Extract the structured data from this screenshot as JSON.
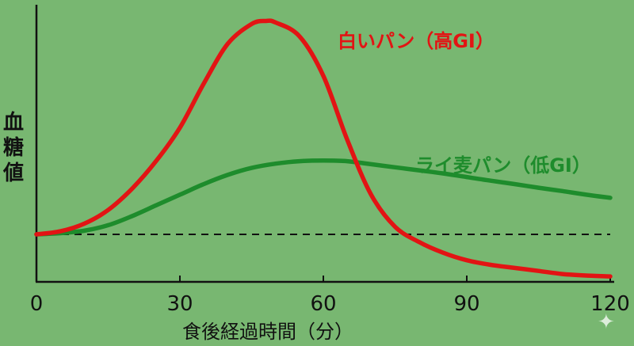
{
  "chart_data": {
    "type": "line",
    "xlabel": "食後経過時間（分）",
    "ylabel": "血糖値",
    "x_ticks": [
      0,
      30,
      60,
      90,
      120
    ],
    "xlim": [
      0,
      120
    ],
    "grid": false,
    "y_ticks_shown": false,
    "baseline": {
      "style": "dashed",
      "color": "#111111"
    },
    "series": [
      {
        "name": "白いパン（高GI）",
        "color": "#e21414",
        "x": [
          0,
          5,
          10,
          15,
          20,
          25,
          30,
          35,
          40,
          45,
          48,
          50,
          55,
          60,
          65,
          70,
          75,
          80,
          85,
          90,
          95,
          100,
          105,
          110,
          115,
          120
        ],
        "y": [
          0,
          0.1,
          0.35,
          0.8,
          1.5,
          2.4,
          3.5,
          4.95,
          6.25,
          6.9,
          7.0,
          6.95,
          6.5,
          5.2,
          3.1,
          1.3,
          0.25,
          -0.25,
          -0.6,
          -0.85,
          -1.0,
          -1.1,
          -1.2,
          -1.3,
          -1.35,
          -1.38
        ]
      },
      {
        "name": "ライ麦パン（低GI）",
        "color": "#1e8c2c",
        "x": [
          0,
          5,
          10,
          15,
          20,
          25,
          30,
          35,
          40,
          45,
          50,
          55,
          60,
          65,
          70,
          75,
          80,
          85,
          90,
          95,
          100,
          105,
          110,
          115,
          120
        ],
        "y": [
          0,
          0.04,
          0.12,
          0.3,
          0.6,
          0.95,
          1.3,
          1.65,
          1.95,
          2.18,
          2.32,
          2.4,
          2.42,
          2.4,
          2.3,
          2.2,
          2.1,
          2.0,
          1.88,
          1.76,
          1.65,
          1.53,
          1.42,
          1.3,
          1.2
        ]
      }
    ]
  }
}
